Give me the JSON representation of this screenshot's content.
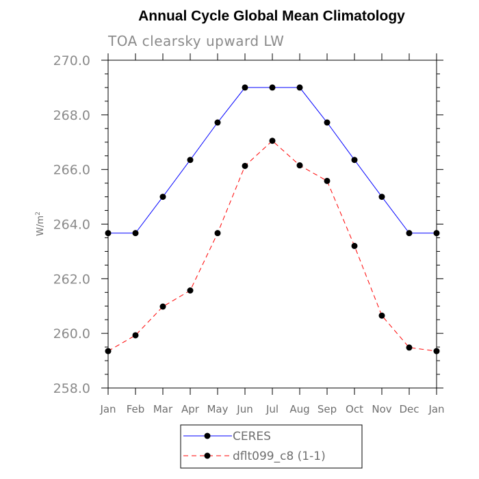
{
  "chart_data": {
    "type": "line",
    "title": "Annual Cycle Global Mean Climatology",
    "subtitle": "TOA clearsky upward LW",
    "ylabel": "W/m",
    "ylabel_superscript": "2",
    "ylim": [
      258.0,
      270.0
    ],
    "yticks": [
      "258.0",
      "260.0",
      "262.0",
      "264.0",
      "266.0",
      "268.0",
      "270.0"
    ],
    "categories": [
      "Jan",
      "Feb",
      "Mar",
      "Apr",
      "May",
      "Jun",
      "Jul",
      "Aug",
      "Sep",
      "Oct",
      "Nov",
      "Dec",
      "Jan"
    ],
    "grid": false,
    "legend_position": "bottom",
    "series": [
      {
        "name": "CERES",
        "color": "#0000ff",
        "dash": "solid",
        "values": [
          263.67,
          263.67,
          265.0,
          266.35,
          267.72,
          269.0,
          269.0,
          269.0,
          267.72,
          266.35,
          265.0,
          263.67,
          263.67
        ]
      },
      {
        "name": "dflt099_c8 (1-1)",
        "color": "#ff0000",
        "dash": "dashed",
        "values": [
          259.35,
          259.93,
          260.98,
          261.57,
          263.67,
          266.13,
          267.05,
          266.15,
          265.58,
          263.2,
          260.65,
          259.48,
          259.35
        ]
      }
    ]
  }
}
